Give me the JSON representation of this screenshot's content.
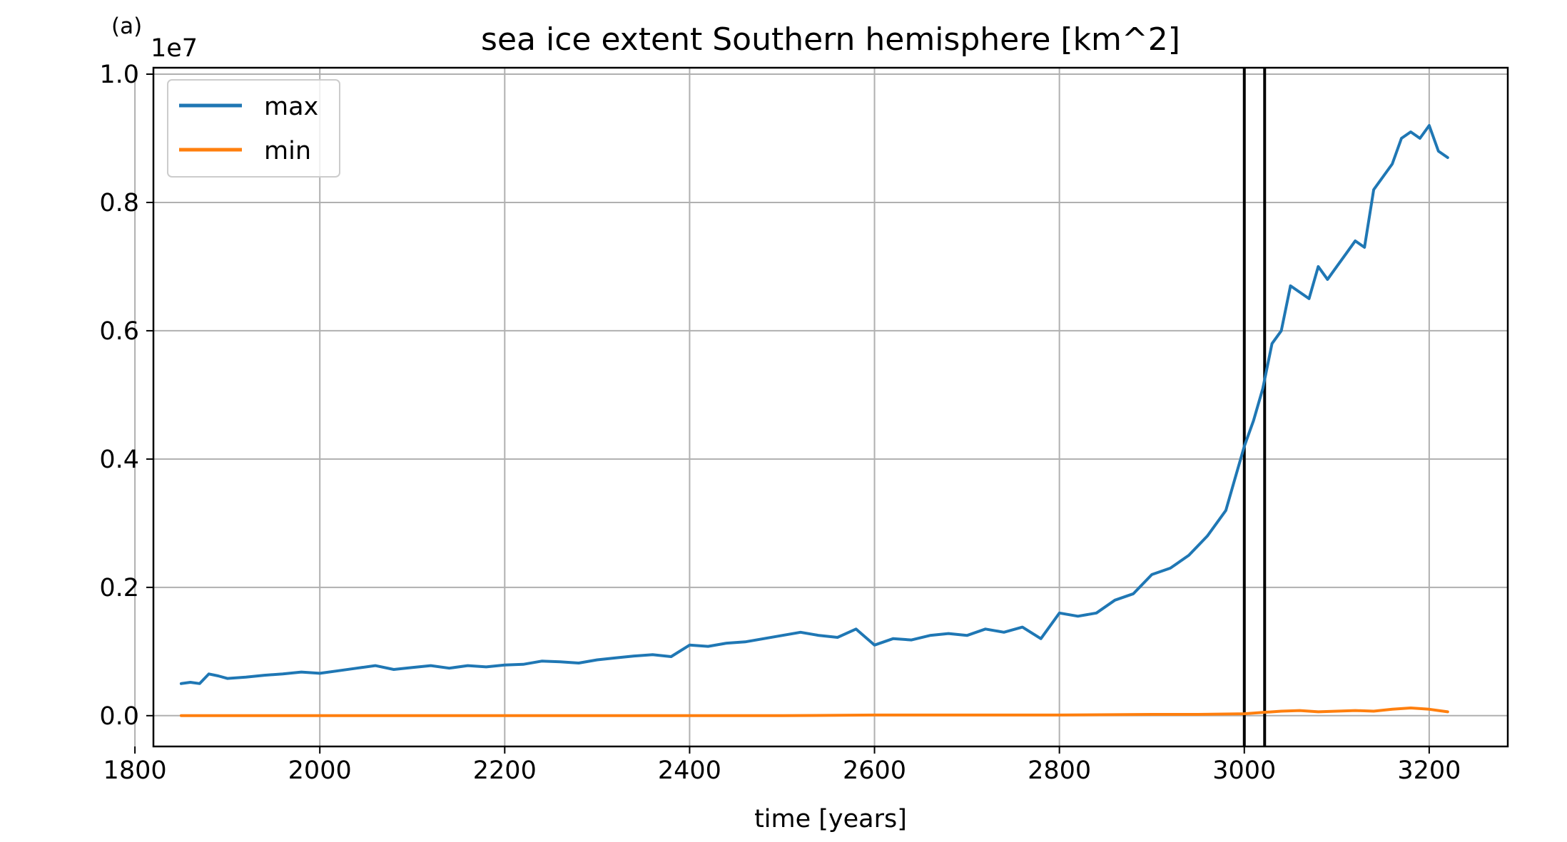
{
  "panel_label": "(a)",
  "chart_data": {
    "type": "line",
    "title": "sea ice extent Southern hemisphere [km^2]",
    "xlabel": "time [years]",
    "ylabel": "",
    "y_offset_label": "1e7",
    "xlim": [
      1820,
      3285
    ],
    "ylim": [
      -0.048,
      1.01
    ],
    "x_ticks": [
      1800,
      2000,
      2200,
      2400,
      2600,
      2800,
      3000,
      3200
    ],
    "y_ticks": [
      0.0,
      0.2,
      0.4,
      0.6,
      0.8,
      1.0
    ],
    "y_tick_labels": [
      "0.0",
      "0.2",
      "0.4",
      "0.6",
      "0.8",
      "1.0"
    ],
    "grid": true,
    "legend_position": "upper left",
    "vertical_lines": [
      3000,
      3022
    ],
    "colors": {
      "max": "#1f77b4",
      "min": "#ff7f0e",
      "vlines": "#000000",
      "grid": "#b0b0b0"
    },
    "series": [
      {
        "name": "max",
        "x": [
          1850,
          1860,
          1870,
          1880,
          1890,
          1900,
          1920,
          1940,
          1960,
          1980,
          2000,
          2020,
          2040,
          2060,
          2080,
          2100,
          2120,
          2140,
          2160,
          2180,
          2200,
          2220,
          2240,
          2260,
          2280,
          2300,
          2320,
          2340,
          2360,
          2380,
          2400,
          2420,
          2440,
          2460,
          2480,
          2500,
          2520,
          2540,
          2560,
          2580,
          2600,
          2620,
          2640,
          2660,
          2680,
          2700,
          2720,
          2740,
          2760,
          2780,
          2800,
          2820,
          2840,
          2860,
          2880,
          2900,
          2920,
          2940,
          2960,
          2980,
          2990,
          3000,
          3010,
          3020,
          3030,
          3040,
          3050,
          3060,
          3070,
          3080,
          3090,
          3100,
          3110,
          3120,
          3130,
          3140,
          3150,
          3160,
          3170,
          3180,
          3190,
          3200,
          3210,
          3220
        ],
        "values": [
          0.05,
          0.052,
          0.05,
          0.065,
          0.062,
          0.058,
          0.06,
          0.063,
          0.065,
          0.068,
          0.066,
          0.07,
          0.074,
          0.078,
          0.072,
          0.075,
          0.078,
          0.074,
          0.078,
          0.076,
          0.079,
          0.08,
          0.085,
          0.084,
          0.082,
          0.087,
          0.09,
          0.093,
          0.095,
          0.092,
          0.11,
          0.108,
          0.113,
          0.115,
          0.12,
          0.125,
          0.13,
          0.125,
          0.122,
          0.135,
          0.11,
          0.12,
          0.118,
          0.125,
          0.128,
          0.125,
          0.135,
          0.13,
          0.138,
          0.12,
          0.16,
          0.155,
          0.16,
          0.18,
          0.19,
          0.22,
          0.23,
          0.25,
          0.28,
          0.32,
          0.37,
          0.42,
          0.46,
          0.51,
          0.58,
          0.6,
          0.67,
          0.66,
          0.65,
          0.7,
          0.68,
          0.7,
          0.72,
          0.74,
          0.73,
          0.82,
          0.84,
          0.86,
          0.9,
          0.91,
          0.9,
          0.92,
          0.88,
          0.87
        ]
      },
      {
        "name": "min",
        "x": [
          1850,
          1900,
          2000,
          2100,
          2200,
          2300,
          2400,
          2500,
          2600,
          2700,
          2800,
          2900,
          2950,
          3000,
          3020,
          3040,
          3060,
          3080,
          3100,
          3120,
          3140,
          3160,
          3180,
          3200,
          3210,
          3220
        ],
        "values": [
          0.0,
          0.0,
          0.0,
          0.0,
          0.0,
          0.0,
          0.0,
          0.0,
          0.001,
          0.001,
          0.001,
          0.002,
          0.002,
          0.003,
          0.005,
          0.007,
          0.008,
          0.006,
          0.007,
          0.008,
          0.007,
          0.01,
          0.012,
          0.01,
          0.008,
          0.006
        ]
      }
    ]
  }
}
